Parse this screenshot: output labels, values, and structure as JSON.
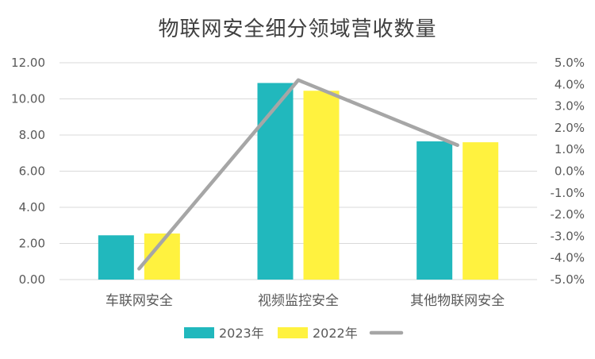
{
  "chart_data": {
    "type": "bar",
    "title": "物联网安全细分领域营收数量",
    "categories": [
      "车联网安全",
      "视频监控安全",
      "其他物联网安全"
    ],
    "series": [
      {
        "name": "2023年",
        "type": "bar",
        "axis": "left",
        "color": "#21B8BD",
        "values": [
          2.45,
          10.88,
          7.65
        ]
      },
      {
        "name": "2022年",
        "type": "bar",
        "axis": "left",
        "color": "#FFF23F",
        "values": [
          2.55,
          10.45,
          7.6
        ]
      },
      {
        "name": "",
        "type": "line",
        "axis": "right",
        "color": "#A6A6A6",
        "values": [
          -4.5,
          4.2,
          1.2
        ]
      }
    ],
    "y_left": {
      "min": 0,
      "max": 12,
      "step": 2,
      "tick_labels": [
        "0.00",
        "2.00",
        "4.00",
        "6.00",
        "8.00",
        "10.00",
        "12.00"
      ]
    },
    "y_right": {
      "min": -5,
      "max": 5,
      "step": 1,
      "tick_labels": [
        "-5.0%",
        "-4.0%",
        "-3.0%",
        "-2.0%",
        "-1.0%",
        "0.0%",
        "1.0%",
        "2.0%",
        "3.0%",
        "4.0%",
        "5.0%"
      ]
    },
    "grid": true,
    "legend_position": "bottom"
  }
}
